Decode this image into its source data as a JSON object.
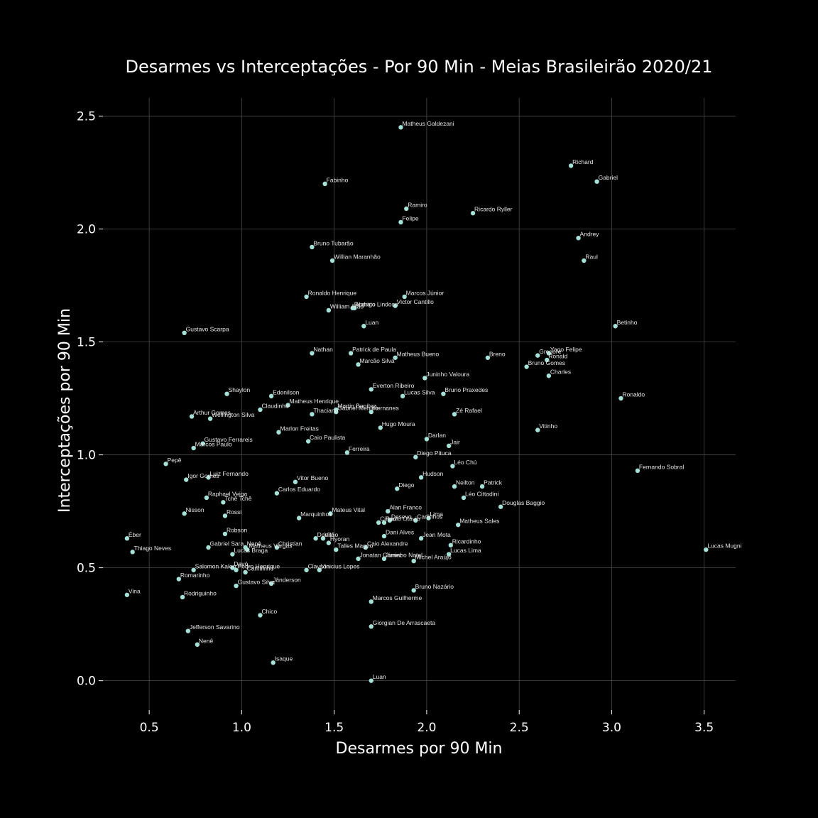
{
  "chart_data": {
    "type": "scatter",
    "title": "Desarmes vs Interceptações - Por 90 Min - Meias Brasileirão 2020/21",
    "xlabel": "Desarmes por 90 Min",
    "ylabel": "Interceptações por 90 Min",
    "xlim": [
      0.25,
      3.67
    ],
    "ylim": [
      -0.13,
      2.58
    ],
    "xticks": [
      0.5,
      1.0,
      1.5,
      2.0,
      2.5,
      3.0,
      3.5
    ],
    "yticks": [
      0.0,
      0.5,
      1.0,
      1.5,
      2.0,
      2.5
    ],
    "xtick_labels": [
      "0.5",
      "1.0",
      "1.5",
      "2.0",
      "2.5",
      "3.0",
      "3.5"
    ],
    "ytick_labels": [
      "0.0",
      "0.5",
      "1.0",
      "1.5",
      "2.0",
      "2.5"
    ],
    "grid": true,
    "marker_color": "#a6e1d8",
    "points": [
      {
        "label": "Matheus Galdezani",
        "x": 1.86,
        "y": 2.45
      },
      {
        "label": "Richard",
        "x": 2.78,
        "y": 2.28
      },
      {
        "label": "Gabriel",
        "x": 2.92,
        "y": 2.21
      },
      {
        "label": "Fabinho",
        "x": 1.45,
        "y": 2.2
      },
      {
        "label": "Ramiro",
        "x": 1.89,
        "y": 2.09
      },
      {
        "label": "Ricardo Ryller",
        "x": 2.25,
        "y": 2.07
      },
      {
        "label": "Felipe",
        "x": 1.86,
        "y": 2.03
      },
      {
        "label": "Andrey",
        "x": 2.82,
        "y": 1.96
      },
      {
        "label": "Bruno Tubarão",
        "x": 1.38,
        "y": 1.92
      },
      {
        "label": "Willian Maranhão",
        "x": 1.49,
        "y": 1.86
      },
      {
        "label": "Raul",
        "x": 2.85,
        "y": 1.86
      },
      {
        "label": "Ronaldo Henrique",
        "x": 1.35,
        "y": 1.7
      },
      {
        "label": "Marcos Júnior",
        "x": 1.88,
        "y": 1.7
      },
      {
        "label": "Victor Cantillo",
        "x": 1.83,
        "y": 1.66
      },
      {
        "label": "Rodrigo Lindoso",
        "x": 1.6,
        "y": 1.65
      },
      {
        "label": "William Arão",
        "x": 1.47,
        "y": 1.64
      },
      {
        "label": "Nonato",
        "x": 1.61,
        "y": 1.65
      },
      {
        "label": "Luan",
        "x": 1.66,
        "y": 1.57
      },
      {
        "label": "Gustavo Scarpa",
        "x": 0.69,
        "y": 1.54
      },
      {
        "label": "Betinho",
        "x": 3.02,
        "y": 1.57
      },
      {
        "label": "Nathan",
        "x": 1.38,
        "y": 1.45
      },
      {
        "label": "Patrick de Paula",
        "x": 1.59,
        "y": 1.45
      },
      {
        "label": "Matheus Bueno",
        "x": 1.83,
        "y": 1.43
      },
      {
        "label": "Marcão Silva",
        "x": 1.63,
        "y": 1.4
      },
      {
        "label": "Breno",
        "x": 2.33,
        "y": 1.43
      },
      {
        "label": "Yago Felipe",
        "x": 2.66,
        "y": 1.45
      },
      {
        "label": "Gregore",
        "x": 2.6,
        "y": 1.44
      },
      {
        "label": "Ronald",
        "x": 2.65,
        "y": 1.42
      },
      {
        "label": "Bruno Gomes",
        "x": 2.54,
        "y": 1.39
      },
      {
        "label": "Charles",
        "x": 2.66,
        "y": 1.35
      },
      {
        "label": "Juninho Valoura",
        "x": 1.99,
        "y": 1.34
      },
      {
        "label": "Everton Ribeiro",
        "x": 1.7,
        "y": 1.29
      },
      {
        "label": "Lucas Silva",
        "x": 1.87,
        "y": 1.26
      },
      {
        "label": "Bruno Praxedes",
        "x": 2.09,
        "y": 1.27
      },
      {
        "label": "Ronaldo",
        "x": 3.05,
        "y": 1.25
      },
      {
        "label": "Shaylon",
        "x": 0.92,
        "y": 1.27
      },
      {
        "label": "Edenilson",
        "x": 1.16,
        "y": 1.26
      },
      {
        "label": "Matheus Henrique",
        "x": 1.25,
        "y": 1.22
      },
      {
        "label": "Claudinho",
        "x": 1.1,
        "y": 1.2
      },
      {
        "label": "Thaciano",
        "x": 1.38,
        "y": 1.18
      },
      {
        "label": "Martin Benítez",
        "x": 1.51,
        "y": 1.2
      },
      {
        "label": "Gabriel Menino",
        "x": 1.51,
        "y": 1.19
      },
      {
        "label": "Hernanes",
        "x": 1.7,
        "y": 1.19
      },
      {
        "label": "Zé Rafael",
        "x": 2.15,
        "y": 1.18
      },
      {
        "label": "Arthur Gomes",
        "x": 0.73,
        "y": 1.17
      },
      {
        "label": "Wellington Silva",
        "x": 0.83,
        "y": 1.16
      },
      {
        "label": "Hugo Moura",
        "x": 1.75,
        "y": 1.12
      },
      {
        "label": "Vitinho",
        "x": 2.6,
        "y": 1.11
      },
      {
        "label": "Marlon Freitas",
        "x": 1.2,
        "y": 1.1
      },
      {
        "label": "Caio Paulista",
        "x": 1.36,
        "y": 1.06
      },
      {
        "label": "Darlan",
        "x": 2.0,
        "y": 1.07
      },
      {
        "label": "Gustavo Ferrareis",
        "x": 0.79,
        "y": 1.05
      },
      {
        "label": "Marcos Paulo",
        "x": 0.74,
        "y": 1.03
      },
      {
        "label": "Jair",
        "x": 2.12,
        "y": 1.04
      },
      {
        "label": "Ferreira",
        "x": 1.57,
        "y": 1.01
      },
      {
        "label": "Diego Pituca",
        "x": 1.94,
        "y": 0.99
      },
      {
        "label": "Pepê",
        "x": 0.59,
        "y": 0.96
      },
      {
        "label": "Léo Chú",
        "x": 2.14,
        "y": 0.95
      },
      {
        "label": "Fernando Sobral",
        "x": 3.14,
        "y": 0.93
      },
      {
        "label": "Luiz Fernando",
        "x": 0.82,
        "y": 0.9
      },
      {
        "label": "Igor Gomes",
        "x": 0.7,
        "y": 0.89
      },
      {
        "label": "Hudson",
        "x": 1.97,
        "y": 0.9
      },
      {
        "label": "Vitor Bueno",
        "x": 1.29,
        "y": 0.88
      },
      {
        "label": "Diego",
        "x": 1.84,
        "y": 0.85
      },
      {
        "label": "Neilton",
        "x": 2.15,
        "y": 0.86
      },
      {
        "label": "Patrick",
        "x": 2.3,
        "y": 0.86
      },
      {
        "label": "Carlos Eduardo",
        "x": 1.19,
        "y": 0.83
      },
      {
        "label": "Léo Cittadini",
        "x": 2.2,
        "y": 0.81
      },
      {
        "label": "Raphael Veiga",
        "x": 0.81,
        "y": 0.81
      },
      {
        "label": "Tchê Tchê",
        "x": 0.9,
        "y": 0.79
      },
      {
        "label": "Douglas Baggio",
        "x": 2.4,
        "y": 0.77
      },
      {
        "label": "Alan Franco",
        "x": 1.79,
        "y": 0.75
      },
      {
        "label": "Mateus Vital",
        "x": 1.48,
        "y": 0.74
      },
      {
        "label": "Nisson",
        "x": 0.69,
        "y": 0.74
      },
      {
        "label": "Rossi",
        "x": 0.91,
        "y": 0.73
      },
      {
        "label": "Marquinhos",
        "x": 1.31,
        "y": 0.72
      },
      {
        "label": "Lima",
        "x": 2.01,
        "y": 0.72
      },
      {
        "label": "Carlinhos",
        "x": 1.94,
        "y": 0.71
      },
      {
        "label": "Desevo",
        "x": 1.8,
        "y": 0.71
      },
      {
        "label": "Paulo Otávio",
        "x": 1.77,
        "y": 0.7
      },
      {
        "label": "Cirino",
        "x": 1.74,
        "y": 0.7
      },
      {
        "label": "Matheus Sales",
        "x": 2.17,
        "y": 0.69
      },
      {
        "label": "Dani Alves",
        "x": 1.77,
        "y": 0.64
      },
      {
        "label": "Jean Mota",
        "x": 1.97,
        "y": 0.63
      },
      {
        "label": "Robson",
        "x": 0.91,
        "y": 0.65
      },
      {
        "label": "Éber",
        "x": 0.38,
        "y": 0.63
      },
      {
        "label": "Danilo",
        "x": 1.4,
        "y": 0.63
      },
      {
        "label": "Vitão",
        "x": 1.44,
        "y": 0.63
      },
      {
        "label": "Hyoran",
        "x": 1.47,
        "y": 0.61
      },
      {
        "label": "Ricardinho",
        "x": 2.13,
        "y": 0.6
      },
      {
        "label": "Gabriel Sara",
        "x": 0.82,
        "y": 0.59
      },
      {
        "label": "Nenê",
        "x": 1.02,
        "y": 0.59
      },
      {
        "label": "Matheus Vargas",
        "x": 1.03,
        "y": 0.58
      },
      {
        "label": "Christian",
        "x": 1.19,
        "y": 0.59
      },
      {
        "label": "Caio Alexandre",
        "x": 1.67,
        "y": 0.59
      },
      {
        "label": "Talles Magno",
        "x": 1.51,
        "y": 0.58
      },
      {
        "label": "Lucas Mugni",
        "x": 3.51,
        "y": 0.58
      },
      {
        "label": "Thiago Neves",
        "x": 0.41,
        "y": 0.57
      },
      {
        "label": "Lucas Braga",
        "x": 0.95,
        "y": 0.56
      },
      {
        "label": "Lucas Lima",
        "x": 2.12,
        "y": 0.56
      },
      {
        "label": "Jonatan Gómez",
        "x": 1.63,
        "y": 0.54
      },
      {
        "label": "Juninho Natel",
        "x": 1.77,
        "y": 0.54
      },
      {
        "label": "Michel Araújo",
        "x": 1.93,
        "y": 0.53
      },
      {
        "label": "Salomon Kalou",
        "x": 0.74,
        "y": 0.49
      },
      {
        "label": "Davó",
        "x": 0.95,
        "y": 0.5
      },
      {
        "label": "Pedro Henrique",
        "x": 0.97,
        "y": 0.49
      },
      {
        "label": "Clayson",
        "x": 1.35,
        "y": 0.49
      },
      {
        "label": "Vinicius Lopes",
        "x": 1.42,
        "y": 0.49
      },
      {
        "label": "Camilinho",
        "x": 1.02,
        "y": 0.48
      },
      {
        "label": "Romarinho",
        "x": 0.66,
        "y": 0.45
      },
      {
        "label": "Gustavo Silva",
        "x": 0.97,
        "y": 0.42
      },
      {
        "label": "Jânderson",
        "x": 1.16,
        "y": 0.43
      },
      {
        "label": "Bruno Nazário",
        "x": 1.93,
        "y": 0.4
      },
      {
        "label": "Vina",
        "x": 0.38,
        "y": 0.38
      },
      {
        "label": "Rodriguinho",
        "x": 0.68,
        "y": 0.37
      },
      {
        "label": "Marcos Guilherme",
        "x": 1.7,
        "y": 0.35
      },
      {
        "label": "Chico",
        "x": 1.1,
        "y": 0.29
      },
      {
        "label": "Giorgian De Arrascaeta",
        "x": 1.7,
        "y": 0.24
      },
      {
        "label": "Jefferson Savarino",
        "x": 0.71,
        "y": 0.22
      },
      {
        "label": "Nenê",
        "x": 0.76,
        "y": 0.16
      },
      {
        "label": "Isaque",
        "x": 1.17,
        "y": 0.08
      },
      {
        "label": "Luan",
        "x": 1.7,
        "y": 0.0
      }
    ]
  }
}
